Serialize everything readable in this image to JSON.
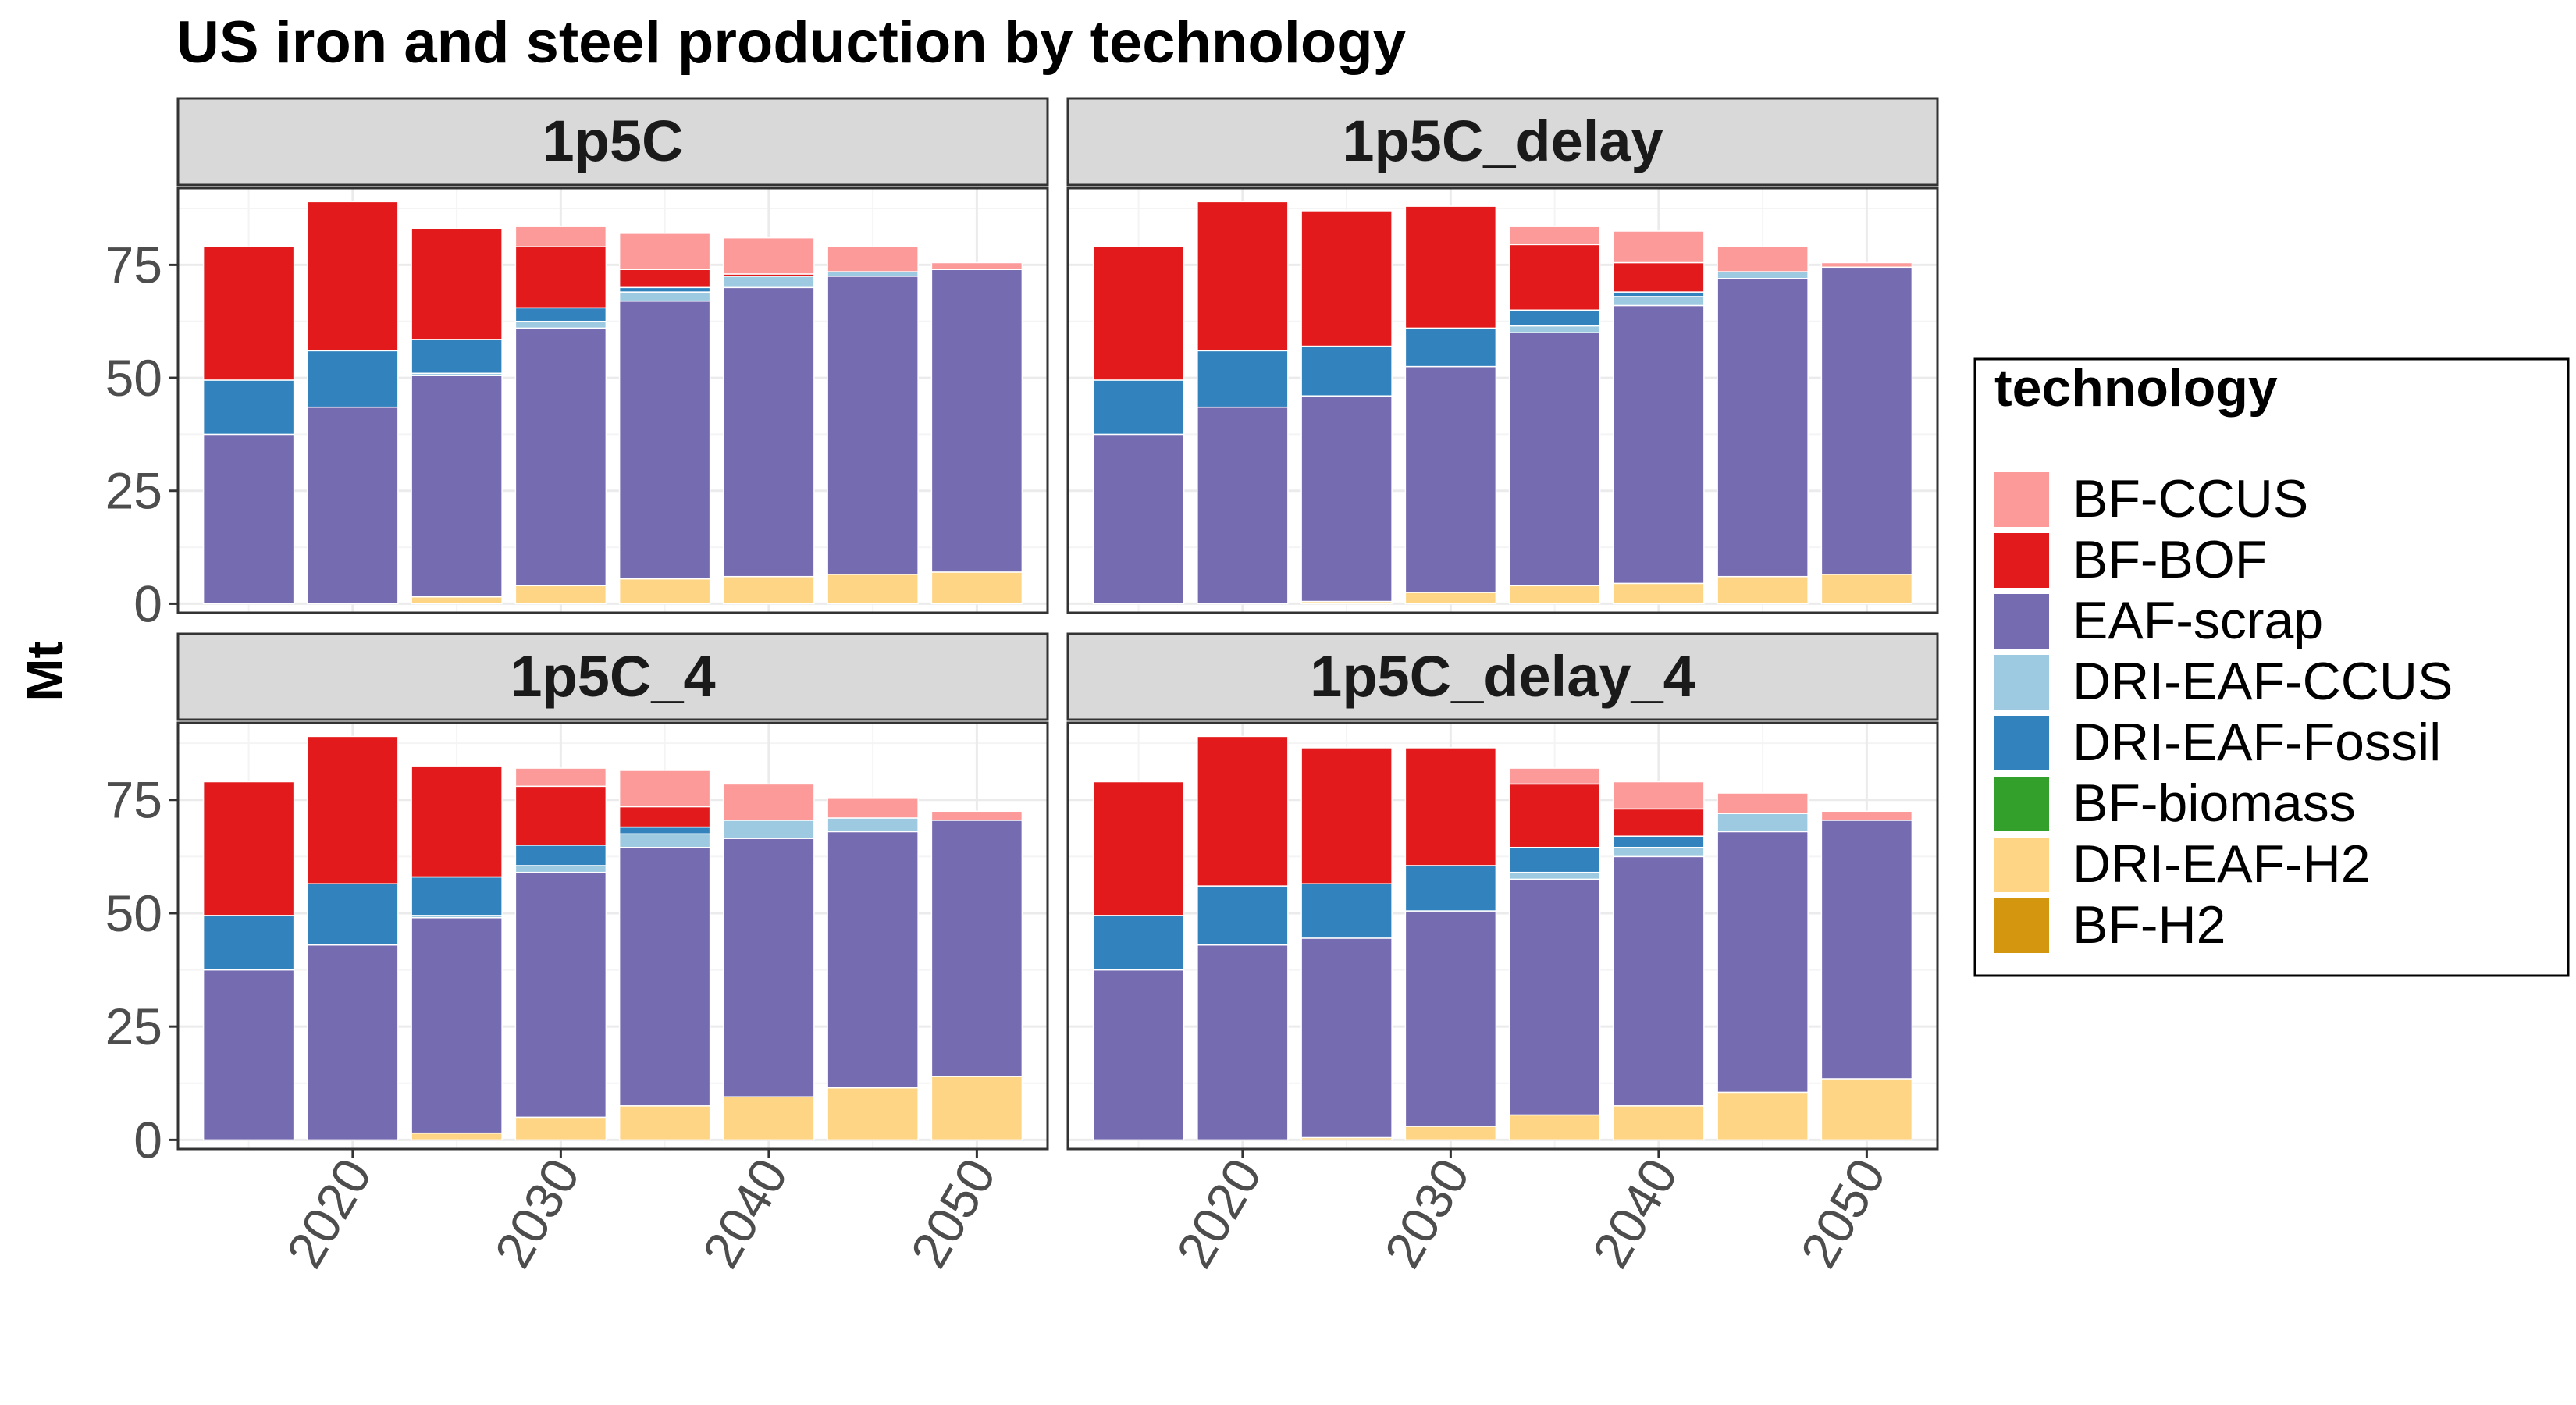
{
  "chart_data": {
    "type": "bar",
    "stacked": true,
    "title": "US iron and steel production by technology",
    "xlabel": "",
    "ylabel": "Mt",
    "ylim": [
      -2,
      92
    ],
    "yticks": [
      0,
      25,
      50,
      75
    ],
    "xlim": [
      2011.6,
      2053.4
    ],
    "xticks": [
      2020,
      2030,
      2040,
      2050
    ],
    "x": [
      2015,
      2020,
      2025,
      2030,
      2035,
      2040,
      2045,
      2050
    ],
    "grid": true,
    "legend": {
      "title": "technology",
      "position": "right",
      "entries": [
        "BF-CCUS",
        "BF-BOF",
        "EAF-scrap",
        "DRI-EAF-CCUS",
        "DRI-EAF-Fossil",
        "BF-biomass",
        "DRI-EAF-H2",
        "BF-H2"
      ]
    },
    "colors": {
      "BF-CCUS": "#fb9a99",
      "BF-BOF": "#e31a1c",
      "EAF-scrap": "#756bb1",
      "DRI-EAF-CCUS": "#9ecae1",
      "DRI-EAF-Fossil": "#3182bd",
      "BF-biomass": "#33a02c",
      "DRI-EAF-H2": "#fdd585",
      "BF-H2": "#d4950f"
    },
    "stack_order_bottom_to_top": [
      "BF-H2",
      "DRI-EAF-H2",
      "BF-biomass",
      "EAF-scrap",
      "DRI-EAF-CCUS",
      "DRI-EAF-Fossil",
      "BF-BOF",
      "BF-CCUS"
    ],
    "panels": [
      {
        "name": "1p5C",
        "series": [
          {
            "name": "DRI-EAF-H2",
            "values": [
              0,
              0,
              1.5,
              4,
              5.5,
              6,
              6.5,
              7
            ]
          },
          {
            "name": "EAF-scrap",
            "values": [
              37.5,
              43.5,
              49,
              57,
              61.5,
              64,
              66,
              67
            ]
          },
          {
            "name": "DRI-EAF-CCUS",
            "values": [
              0,
              0,
              0.5,
              1.5,
              2,
              2.5,
              1,
              0
            ]
          },
          {
            "name": "DRI-EAF-Fossil",
            "values": [
              12,
              12.5,
              7.5,
              3,
              1,
              0,
              0,
              0
            ]
          },
          {
            "name": "BF-BOF",
            "values": [
              29.5,
              33,
              24.5,
              13.5,
              4,
              0.5,
              0,
              0
            ]
          },
          {
            "name": "BF-CCUS",
            "values": [
              0,
              0,
              0,
              4.5,
              8,
              8,
              5.5,
              1.5
            ]
          }
        ]
      },
      {
        "name": "1p5C_delay",
        "series": [
          {
            "name": "DRI-EAF-H2",
            "values": [
              0,
              0,
              0.5,
              2.5,
              4,
              4.5,
              6,
              6.5
            ]
          },
          {
            "name": "EAF-scrap",
            "values": [
              37.5,
              43.5,
              45.5,
              50,
              56,
              61.5,
              66,
              68
            ]
          },
          {
            "name": "DRI-EAF-CCUS",
            "values": [
              0,
              0,
              0,
              0,
              1.5,
              2,
              1.5,
              0
            ]
          },
          {
            "name": "DRI-EAF-Fossil",
            "values": [
              12,
              12.5,
              11,
              8.5,
              3.5,
              1,
              0,
              0
            ]
          },
          {
            "name": "BF-BOF",
            "values": [
              29.5,
              33,
              30,
              27,
              14.5,
              6.5,
              0,
              0
            ]
          },
          {
            "name": "BF-CCUS",
            "values": [
              0,
              0,
              0,
              0,
              4,
              7,
              5.5,
              1
            ]
          }
        ]
      },
      {
        "name": "1p5C_4",
        "series": [
          {
            "name": "DRI-EAF-H2",
            "values": [
              0,
              0,
              1.5,
              5,
              7.5,
              9.5,
              11.5,
              14
            ]
          },
          {
            "name": "EAF-scrap",
            "values": [
              37.5,
              43,
              47.5,
              54,
              57,
              57,
              56.5,
              56.5
            ]
          },
          {
            "name": "DRI-EAF-CCUS",
            "values": [
              0,
              0,
              0.5,
              1.5,
              3,
              4,
              3,
              0
            ]
          },
          {
            "name": "DRI-EAF-Fossil",
            "values": [
              12,
              13.5,
              8.5,
              4.5,
              1.5,
              0,
              0,
              0
            ]
          },
          {
            "name": "BF-BOF",
            "values": [
              29.5,
              32.5,
              24.5,
              13,
              4.5,
              0,
              0,
              0
            ]
          },
          {
            "name": "BF-CCUS",
            "values": [
              0,
              0,
              0,
              4,
              8,
              8,
              4.5,
              2
            ]
          }
        ]
      },
      {
        "name": "1p5C_delay_4",
        "series": [
          {
            "name": "DRI-EAF-H2",
            "values": [
              0,
              0,
              0.5,
              3,
              5.5,
              7.5,
              10.5,
              13.5
            ]
          },
          {
            "name": "EAF-scrap",
            "values": [
              37.5,
              43,
              44,
              47.5,
              52,
              55,
              57.5,
              57
            ]
          },
          {
            "name": "DRI-EAF-CCUS",
            "values": [
              0,
              0,
              0,
              0,
              1.5,
              2,
              4,
              0
            ]
          },
          {
            "name": "DRI-EAF-Fossil",
            "values": [
              12,
              13,
              12,
              10,
              5.5,
              2.5,
              0,
              0
            ]
          },
          {
            "name": "BF-BOF",
            "values": [
              29.5,
              33,
              30,
              26,
              14,
              6,
              0,
              0
            ]
          },
          {
            "name": "BF-CCUS",
            "values": [
              0,
              0,
              0,
              0,
              3.5,
              6,
              4.5,
              2
            ]
          }
        ]
      }
    ]
  }
}
